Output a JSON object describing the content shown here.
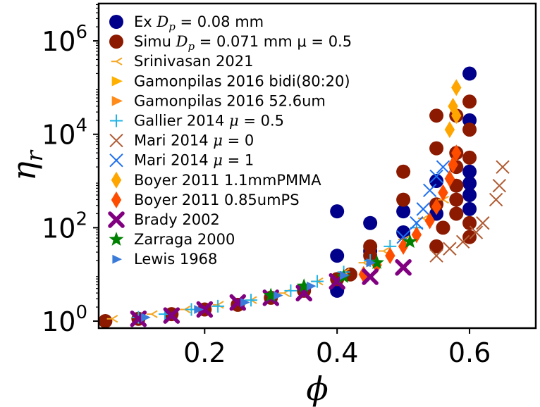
{
  "chart_data": {
    "type": "scatter",
    "title": "",
    "xlabel": "ϕ",
    "ylabel": "η",
    "ylabel_sub": "r",
    "xlim": [
      0.04,
      0.7
    ],
    "ylog10_lim": [
      -0.15,
      6.8
    ],
    "xticks": [
      {
        "value": 0.2,
        "label": "0.2"
      },
      {
        "value": 0.4,
        "label": "0.4"
      },
      {
        "value": 0.6,
        "label": "0.6"
      }
    ],
    "yticks": [
      {
        "exp": 0,
        "base": "10",
        "sup": "0"
      },
      {
        "exp": 2,
        "base": "10",
        "sup": "2"
      },
      {
        "exp": 4,
        "base": "10",
        "sup": "4"
      },
      {
        "exp": 6,
        "base": "10",
        "sup": "6"
      }
    ],
    "legend_position": "upper-left",
    "series": [
      {
        "name": "Ex Dp = 0.08 mm",
        "label_parts": [
          "Ex ",
          "D",
          "p",
          " = 0.08 mm"
        ],
        "marker": "circle",
        "color": "#00008b",
        "size": 10,
        "points": [
          [
            0.4,
            0.65
          ],
          [
            0.4,
            1.4
          ],
          [
            0.4,
            2.35
          ],
          [
            0.45,
            1.5
          ],
          [
            0.45,
            2.1
          ],
          [
            0.5,
            2.35
          ],
          [
            0.5,
            1.9
          ],
          [
            0.55,
            3.0
          ],
          [
            0.55,
            2.3
          ],
          [
            0.6,
            2.4
          ],
          [
            0.6,
            2.7
          ],
          [
            0.6,
            2.95
          ],
          [
            0.6,
            3.2
          ],
          [
            0.6,
            4.3
          ],
          [
            0.6,
            5.3
          ]
        ]
      },
      {
        "name": "Simu Dp = 0.071 mm μ = 0.5",
        "label_parts": [
          "Simu ",
          "D",
          "p",
          " = 0.071 mm μ = 0.5"
        ],
        "marker": "circle",
        "color": "#8b1a00",
        "size": 10,
        "points": [
          [
            0.05,
            0.0
          ],
          [
            0.1,
            0.05
          ],
          [
            0.15,
            0.15
          ],
          [
            0.2,
            0.25
          ],
          [
            0.25,
            0.35
          ],
          [
            0.3,
            0.5
          ],
          [
            0.35,
            0.65
          ],
          [
            0.4,
            0.9
          ],
          [
            0.42,
            1.0
          ],
          [
            0.45,
            1.6
          ],
          [
            0.45,
            1.4
          ],
          [
            0.5,
            2.6
          ],
          [
            0.5,
            3.2
          ],
          [
            0.55,
            4.4
          ],
          [
            0.55,
            3.7
          ],
          [
            0.55,
            2.5
          ],
          [
            0.55,
            1.6
          ],
          [
            0.56,
            2.0
          ],
          [
            0.58,
            2.3
          ],
          [
            0.58,
            2.6
          ],
          [
            0.58,
            2.9
          ],
          [
            0.58,
            3.3
          ],
          [
            0.58,
            3.6
          ],
          [
            0.58,
            4.4
          ],
          [
            0.6,
            1.8
          ],
          [
            0.6,
            2.1
          ],
          [
            0.6,
            3.5
          ],
          [
            0.6,
            4.1
          ],
          [
            0.6,
            4.7
          ]
        ]
      },
      {
        "name": "Srinivasan 2021",
        "label_parts": [
          "Srinivasan 2021"
        ],
        "marker": "tri_left",
        "color": "#f5a623",
        "size": 8,
        "points": [
          [
            0.06,
            0.05
          ],
          [
            0.12,
            0.15
          ],
          [
            0.17,
            0.25
          ],
          [
            0.22,
            0.35
          ],
          [
            0.27,
            0.45
          ],
          [
            0.32,
            0.6
          ],
          [
            0.37,
            0.85
          ],
          [
            0.41,
            1.05
          ],
          [
            0.44,
            1.25
          ],
          [
            0.47,
            1.5
          ],
          [
            0.5,
            1.75
          ],
          [
            0.53,
            2.2
          ],
          [
            0.56,
            2.6
          ]
        ]
      },
      {
        "name": "Gamonpilas 2016 bidi(80:20)",
        "label_parts": [
          "Gamonpilas 2016 bidi(80:20)"
        ],
        "marker": "tri_right",
        "color": "#ffb000",
        "size": 9,
        "points": []
      },
      {
        "name": "Gamonpilas 2016 52.6um",
        "label_parts": [
          "Gamonpilas 2016 52.6um"
        ],
        "marker": "tri_right",
        "color": "#ff8c1a",
        "size": 9,
        "points": []
      },
      {
        "name": "Gallier 2014 μ = 0.5",
        "label_parts": [
          "Gallier 2014 ",
          "μ",
          " = 0.5"
        ],
        "marker": "plus",
        "color": "#1eb4e6",
        "size": 9,
        "points": [
          [
            0.1,
            0.08
          ],
          [
            0.14,
            0.15
          ],
          [
            0.18,
            0.25
          ],
          [
            0.22,
            0.32
          ],
          [
            0.27,
            0.45
          ],
          [
            0.33,
            0.65
          ],
          [
            0.37,
            0.85
          ],
          [
            0.41,
            1.05
          ],
          [
            0.45,
            1.3
          ],
          [
            0.48,
            1.6
          ],
          [
            0.52,
            2.0
          ]
        ]
      },
      {
        "name": "Mari 2014 μ = 0",
        "label_parts": [
          "Mari 2014 ",
          "μ",
          " = 0"
        ],
        "marker": "x",
        "color": "#b05a32",
        "size": 9,
        "points": [
          [
            0.55,
            1.4
          ],
          [
            0.57,
            1.55
          ],
          [
            0.59,
            1.7
          ],
          [
            0.61,
            1.9
          ],
          [
            0.62,
            2.1
          ],
          [
            0.64,
            2.6
          ],
          [
            0.645,
            2.9
          ],
          [
            0.65,
            3.3
          ]
        ]
      },
      {
        "name": "Mari 2014 μ = 1",
        "label_parts": [
          "Mari 2014 ",
          "μ",
          " = 1"
        ],
        "marker": "x",
        "color": "#1e6ff0",
        "size": 9,
        "points": [
          [
            0.5,
            1.8
          ],
          [
            0.52,
            2.1
          ],
          [
            0.53,
            2.4
          ],
          [
            0.54,
            2.8
          ],
          [
            0.55,
            3.1
          ],
          [
            0.56,
            3.3
          ]
        ]
      },
      {
        "name": "Boyer 2011 1.1mmPMMA",
        "label_parts": [
          "Boyer 2011 1.1mmPMMA"
        ],
        "marker": "diamond",
        "color": "#ffa500",
        "size": 12,
        "points": [
          [
            0.57,
            4.1
          ],
          [
            0.575,
            4.6
          ],
          [
            0.58,
            5.0
          ],
          [
            0.58,
            4.4
          ]
        ]
      },
      {
        "name": "Boyer 2011 0.85umPS",
        "label_parts": [
          "Boyer 2011 0.85umPS"
        ],
        "marker": "diamond",
        "color": "#ff4d00",
        "size": 12,
        "points": [
          [
            0.44,
            1.0
          ],
          [
            0.46,
            1.2
          ],
          [
            0.48,
            1.4
          ],
          [
            0.5,
            1.6
          ],
          [
            0.52,
            1.85
          ],
          [
            0.54,
            2.15
          ],
          [
            0.55,
            2.45
          ],
          [
            0.56,
            2.75
          ],
          [
            0.57,
            3.05
          ],
          [
            0.575,
            3.35
          ],
          [
            0.58,
            3.6
          ]
        ]
      },
      {
        "name": "Brady 2002",
        "label_parts": [
          "Brady 2002"
        ],
        "marker": "xbold",
        "color": "#800080",
        "size": 9,
        "points": [
          [
            0.1,
            0.05
          ],
          [
            0.15,
            0.12
          ],
          [
            0.2,
            0.25
          ],
          [
            0.25,
            0.4
          ],
          [
            0.3,
            0.5
          ],
          [
            0.35,
            0.6
          ],
          [
            0.4,
            0.85
          ],
          [
            0.45,
            0.95
          ],
          [
            0.5,
            1.15
          ]
        ]
      },
      {
        "name": "Zarraga 2000",
        "label_parts": [
          "Zarraga 2000"
        ],
        "marker": "star",
        "color": "#008000",
        "size": 11,
        "points": [
          [
            0.3,
            0.55
          ],
          [
            0.35,
            0.75
          ],
          [
            0.41,
            0.95
          ],
          [
            0.46,
            1.25
          ],
          [
            0.51,
            1.7
          ]
        ]
      },
      {
        "name": "Lewis 1968",
        "label_parts": [
          "Lewis 1968"
        ],
        "marker": "tri_right",
        "color": "#3a7ad9",
        "size": 8,
        "points": [
          [
            0.11,
            0.08
          ],
          [
            0.19,
            0.25
          ],
          [
            0.26,
            0.4
          ],
          [
            0.31,
            0.55
          ],
          [
            0.36,
            0.75
          ],
          [
            0.41,
            0.98
          ],
          [
            0.45,
            1.25
          ]
        ]
      }
    ]
  }
}
